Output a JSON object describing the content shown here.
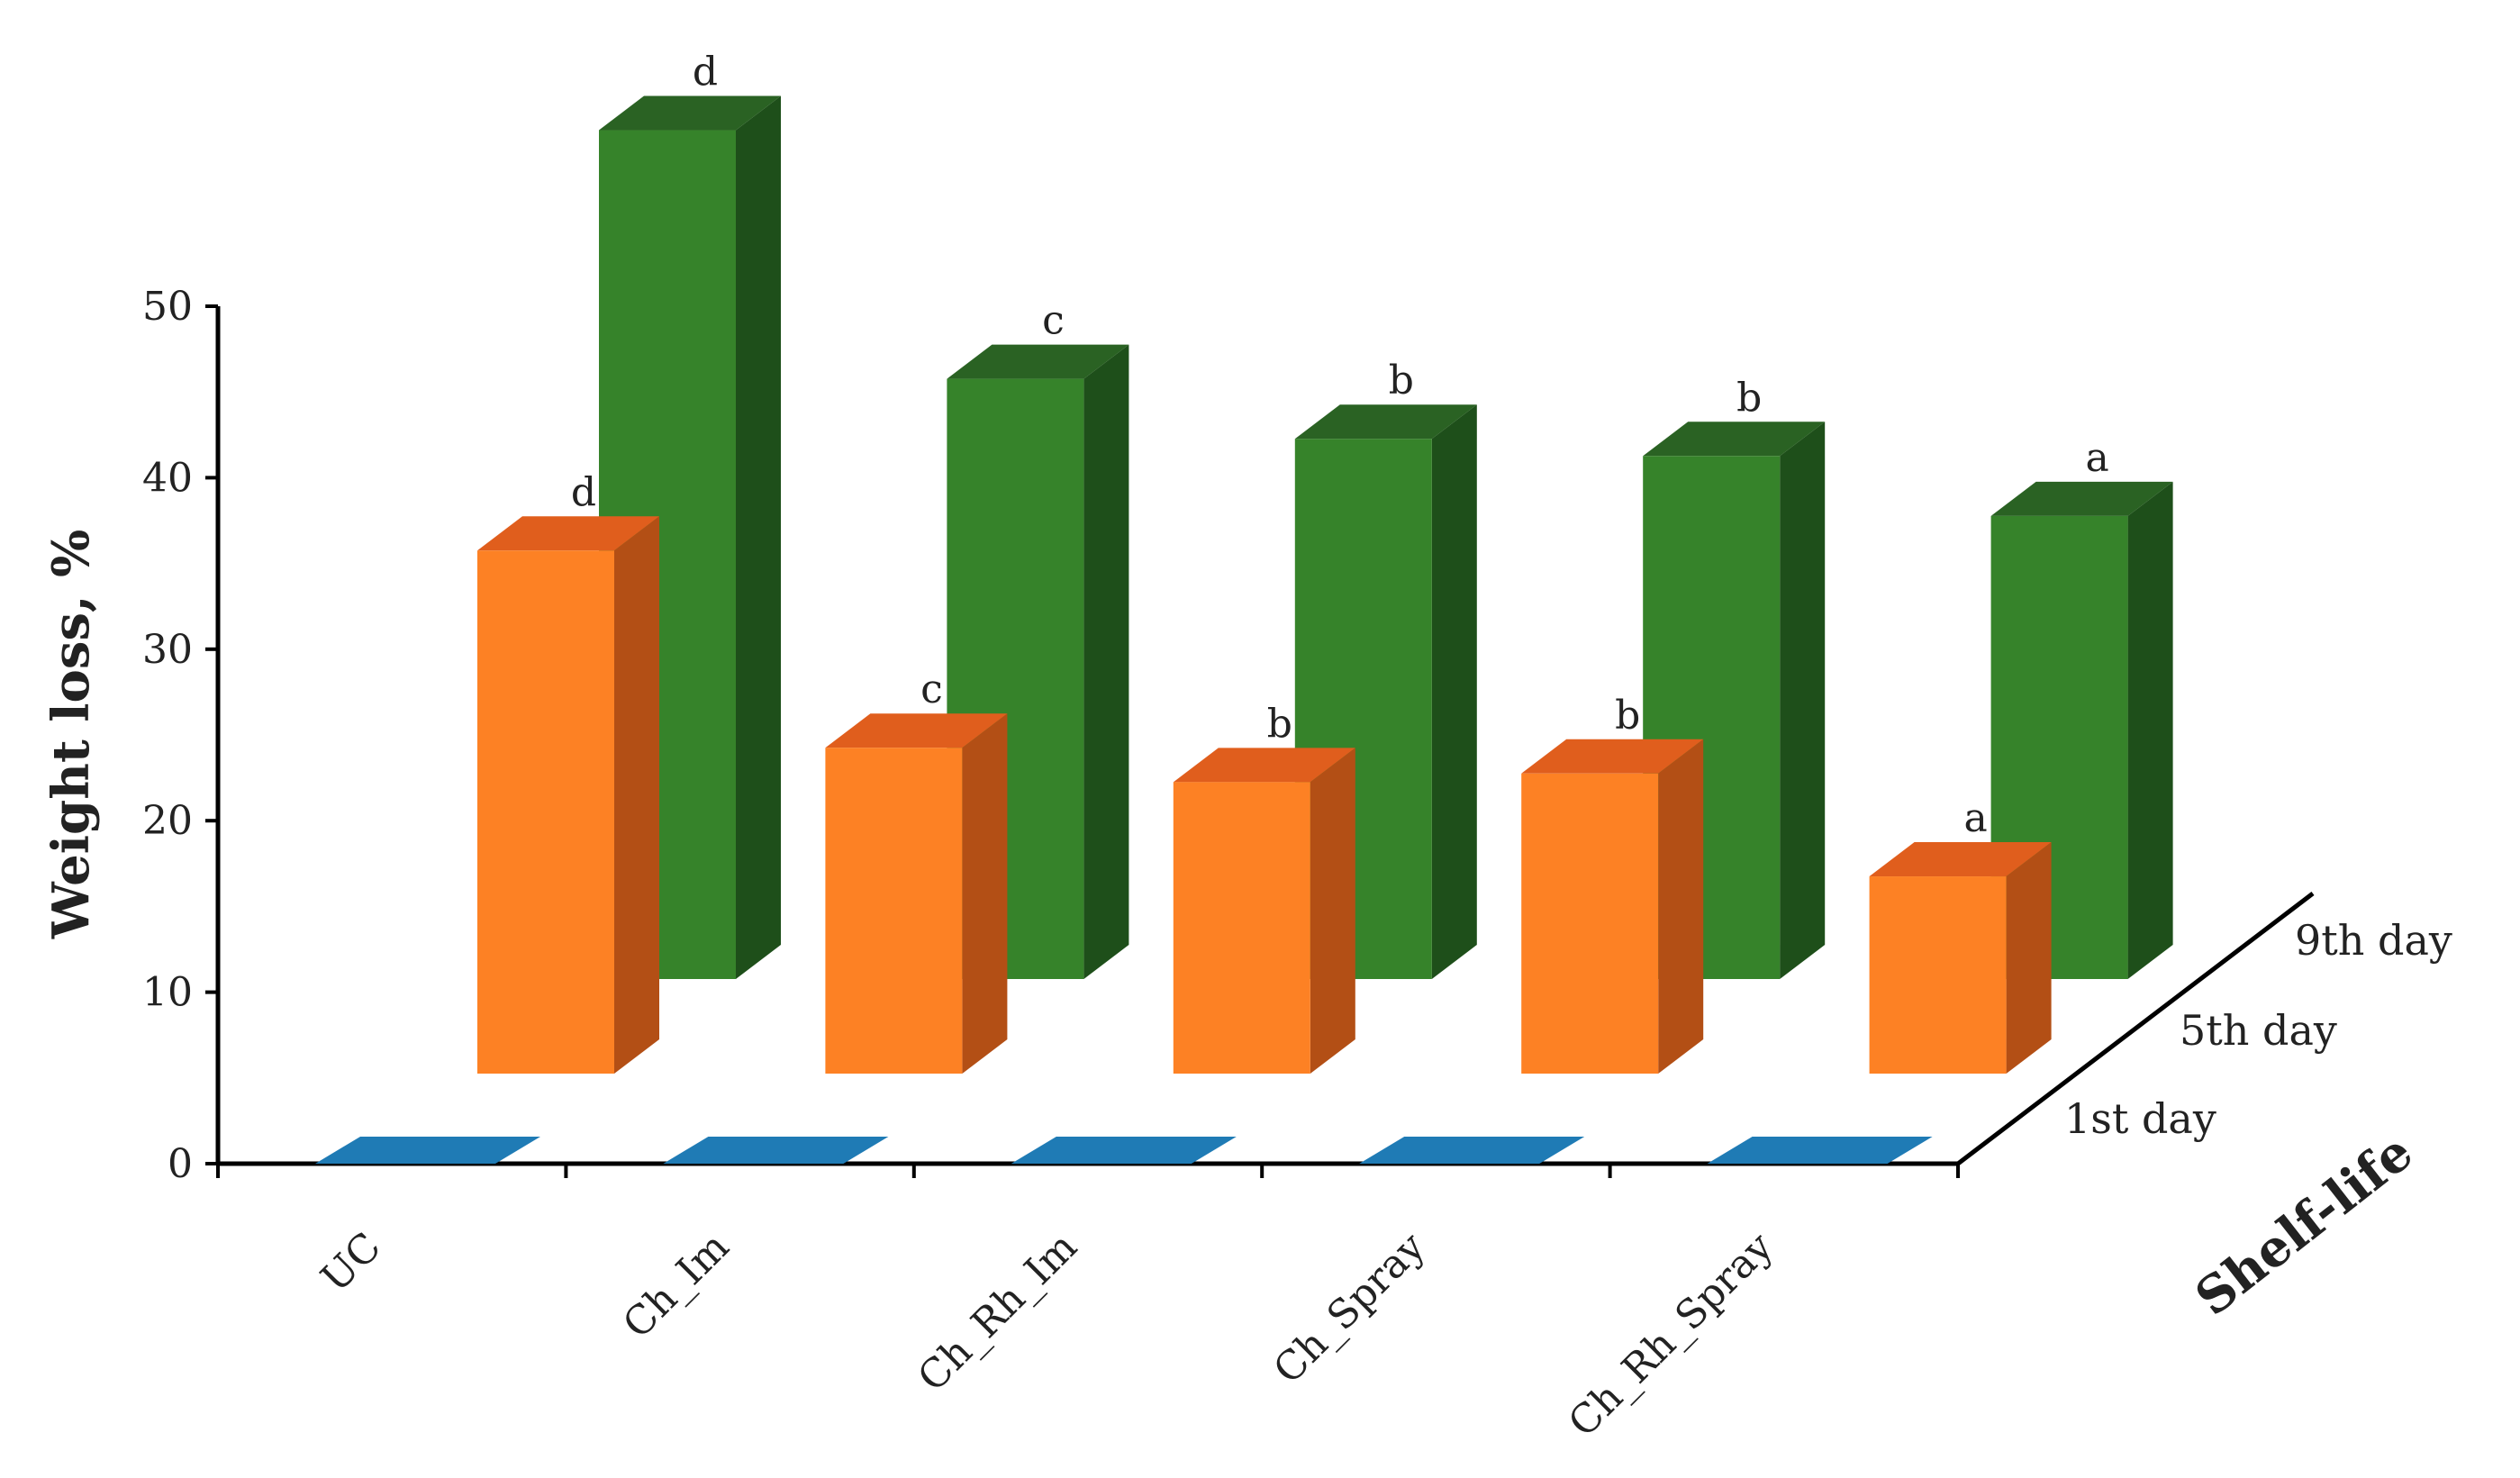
{
  "chart_data": {
    "type": "bar",
    "ylabel": "Weight loss, %",
    "zlabel": "Shelf-life",
    "ylim": [
      0,
      50
    ],
    "yticks": [
      "0",
      "10",
      "20",
      "30",
      "40",
      "50"
    ],
    "categories": [
      "UC",
      "Ch_Im",
      "Ch_Rh_Im",
      "Ch_Spray",
      "Ch_Rh_Spray"
    ],
    "series": [
      {
        "name": "1st day",
        "values": [
          0,
          0,
          0,
          0,
          0
        ],
        "letters": [
          "",
          "",
          "",
          "",
          ""
        ],
        "colors": {
          "front": "#1f7bb5",
          "side": "#155a85",
          "top": "#1f7bb5"
        }
      },
      {
        "name": "5th day",
        "values": [
          30.5,
          19,
          17,
          17.5,
          11.5
        ],
        "letters": [
          "d",
          "c",
          "b",
          "b",
          "a"
        ],
        "colors": {
          "front": "#fd8124",
          "side": "#b34f15",
          "top": "#e05e1d"
        }
      },
      {
        "name": "9th day",
        "values": [
          49.5,
          35,
          31.5,
          30.5,
          27
        ],
        "letters": [
          "d",
          "c",
          "b",
          "b",
          "a"
        ],
        "colors": {
          "front": "#36832a",
          "side": "#1e4f1a",
          "top": "#2a6223"
        }
      }
    ],
    "grid": false,
    "legend": "depth axis"
  }
}
